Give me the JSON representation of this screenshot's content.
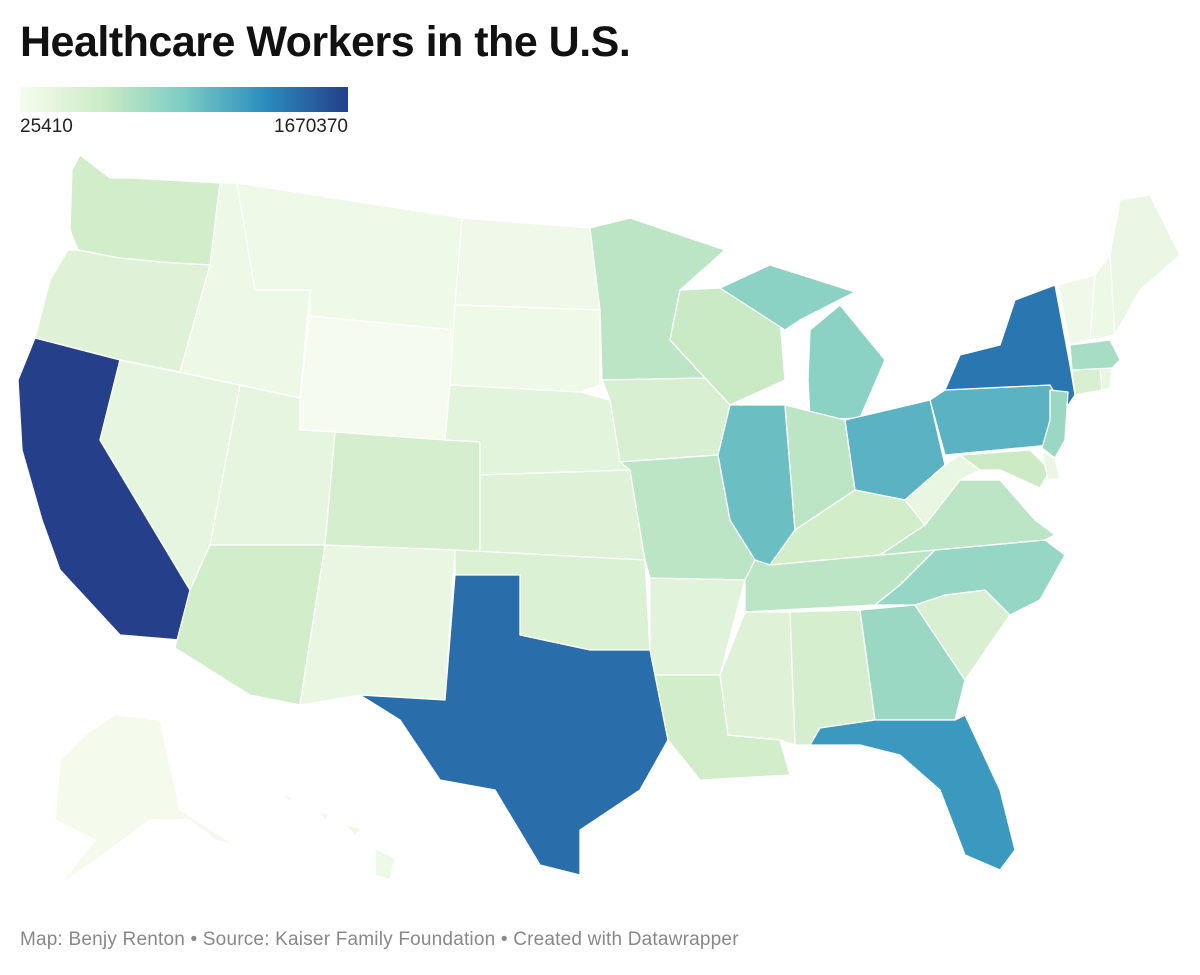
{
  "title": "Healthcare Workers in the U.S.",
  "legend": {
    "min_label": "25410",
    "max_label": "1670370",
    "min_value": 25410,
    "max_value": 1670370,
    "colors": [
      "#f7fcf0",
      "#ccebc5",
      "#7bccc4",
      "#2b8cbe",
      "#253f8b"
    ]
  },
  "map_data": {
    "type": "choropleth",
    "level_scale": "0 = lightest, 1 = darkest (estimated from fill color)",
    "states": {
      "AK": 0.02,
      "HI": 0.05,
      "WA": 0.22,
      "OR": 0.14,
      "CA": 1.0,
      "NV": 0.1,
      "ID": 0.06,
      "MT": 0.05,
      "WY": 0.01,
      "UT": 0.1,
      "AZ": 0.22,
      "CO": 0.2,
      "NM": 0.08,
      "ND": 0.04,
      "SD": 0.05,
      "NE": 0.12,
      "KS": 0.14,
      "OK": 0.16,
      "TX": 0.85,
      "MN": 0.3,
      "IA": 0.18,
      "MO": 0.3,
      "AR": 0.13,
      "LA": 0.22,
      "WI": 0.26,
      "IL": 0.55,
      "MI": 0.45,
      "IN": 0.3,
      "OH": 0.6,
      "KY": 0.22,
      "TN": 0.3,
      "MS": 0.14,
      "AL": 0.2,
      "GA": 0.4,
      "FL": 0.7,
      "SC": 0.18,
      "NC": 0.42,
      "VA": 0.3,
      "WV": 0.08,
      "PA": 0.6,
      "NY": 0.82,
      "NJ": 0.4,
      "DE": 0.07,
      "MD": 0.25,
      "CT": 0.18,
      "RI": 0.08,
      "MA": 0.36,
      "VT": 0.04,
      "NH": 0.06,
      "ME": 0.07
    }
  },
  "footer": {
    "credit": "Map: Benjy Renton • Source: Kaiser Family Foundation • Created with Datawrapper"
  }
}
